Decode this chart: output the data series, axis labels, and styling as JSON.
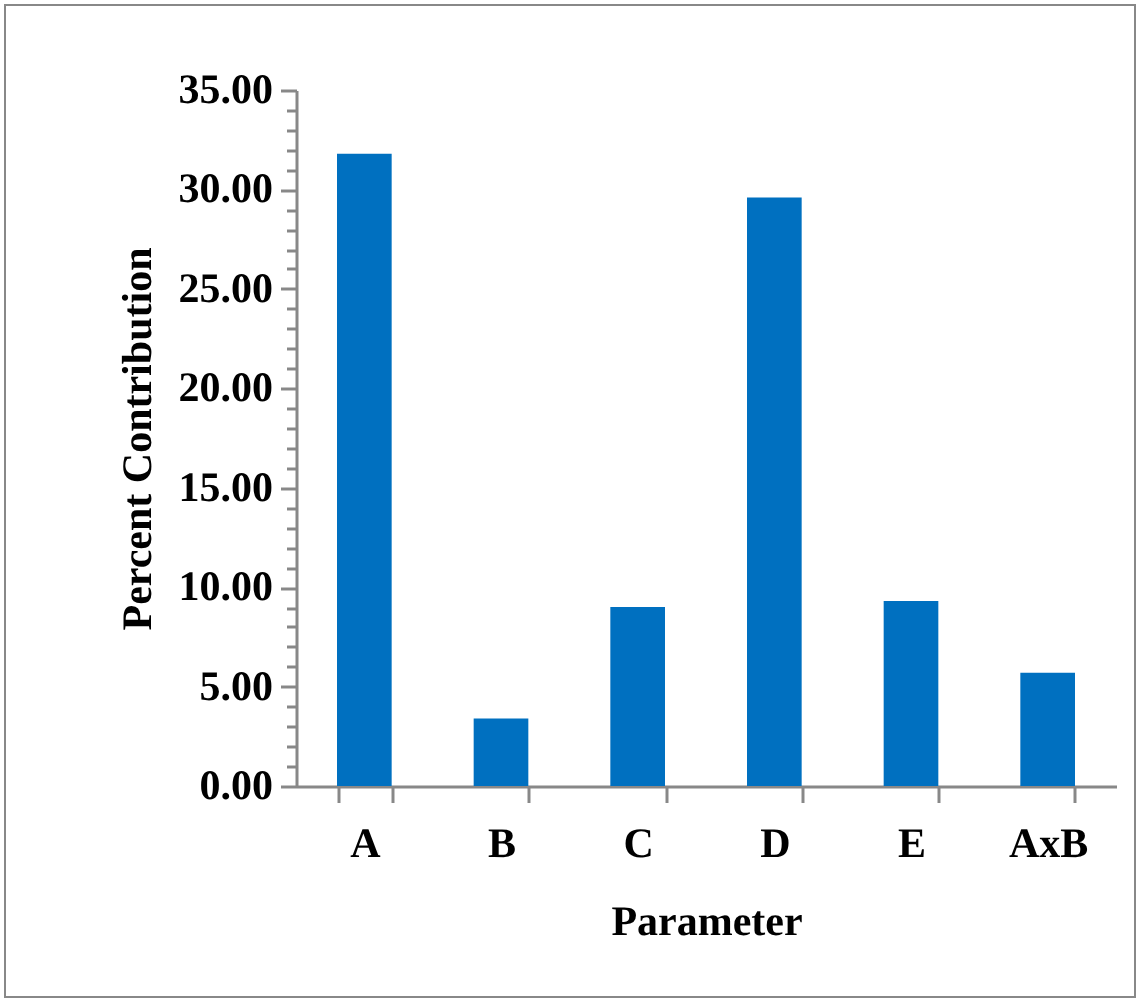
{
  "chart_data": {
    "type": "bar",
    "xlabel": "Parameter",
    "ylabel": "Percent Contribution",
    "categories": [
      "A",
      "B",
      "C",
      "D",
      "E",
      "AxB"
    ],
    "values": [
      31.8,
      3.4,
      9.0,
      29.6,
      9.3,
      5.7
    ],
    "color": "#0070c0",
    "ylim": [
      0,
      35
    ],
    "yticks": [
      {
        "value": 0,
        "label": "0.00"
      },
      {
        "value": 1,
        "label": null
      },
      {
        "value": 2,
        "label": null
      },
      {
        "value": 3,
        "label": null
      },
      {
        "value": 4,
        "label": null
      },
      {
        "value": 5,
        "label": "5.00"
      },
      {
        "value": 6,
        "label": null
      },
      {
        "value": 7,
        "label": null
      },
      {
        "value": 8,
        "label": null
      },
      {
        "value": 9,
        "label": null
      },
      {
        "value": 10,
        "label": "10.00"
      },
      {
        "value": 11,
        "label": null
      },
      {
        "value": 12,
        "label": null
      },
      {
        "value": 13,
        "label": null
      },
      {
        "value": 14,
        "label": null
      },
      {
        "value": 15,
        "label": "15.00"
      },
      {
        "value": 16,
        "label": null
      },
      {
        "value": 17,
        "label": null
      },
      {
        "value": 18,
        "label": null
      },
      {
        "value": 19,
        "label": null
      },
      {
        "value": 20,
        "label": "20.00"
      },
      {
        "value": 21,
        "label": null
      },
      {
        "value": 22,
        "label": null
      },
      {
        "value": 23,
        "label": null
      },
      {
        "value": 24,
        "label": null
      },
      {
        "value": 25,
        "label": "25.00"
      },
      {
        "value": 26,
        "label": null
      },
      {
        "value": 27,
        "label": null
      },
      {
        "value": 28,
        "label": null
      },
      {
        "value": 29,
        "label": null
      },
      {
        "value": 30,
        "label": "30.00"
      },
      {
        "value": 31,
        "label": null
      },
      {
        "value": 32,
        "label": null
      },
      {
        "value": 33,
        "label": null
      },
      {
        "value": 34,
        "label": null
      },
      {
        "value": 35,
        "label": "35.00"
      }
    ],
    "grid": false
  }
}
